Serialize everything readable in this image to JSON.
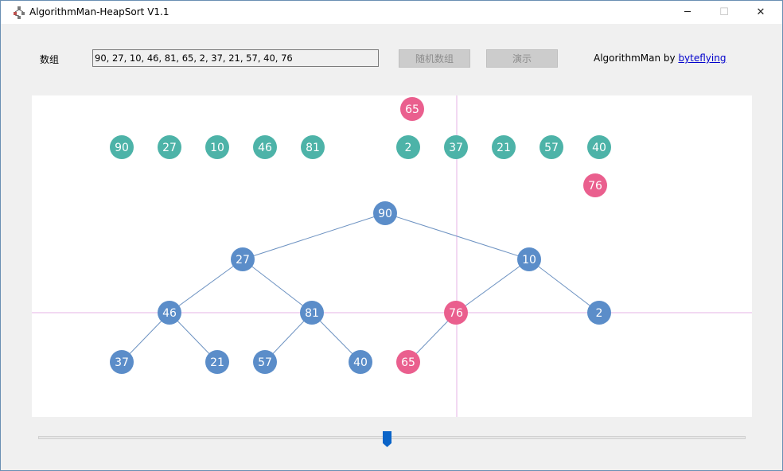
{
  "window": {
    "title": "AlgorithmMan-HeapSort V1.1",
    "icon": "app-tree-icon",
    "minimize_glyph": "─",
    "maximize_glyph": "☐",
    "close_glyph": "✕"
  },
  "toolbar": {
    "array_label": "数组",
    "array_value": "90, 27, 10, 46, 81, 65, 2, 37, 21, 57, 40, 76",
    "random_button": "随机数组",
    "demo_button": "演示",
    "credit_prefix": "AlgorithmMan by ",
    "credit_link": "byteflying"
  },
  "colors": {
    "array_node": "#4db3a8",
    "tree_node": "#5b8dc9",
    "highlight_node": "#ea5f8e",
    "edge": "#6e93c2",
    "crosshair": "#e6b3e6",
    "slider_thumb": "#0a64c8"
  },
  "visualization": {
    "array_row": [
      "90",
      "27",
      "10",
      "46",
      "81",
      "2",
      "37",
      "21",
      "57",
      "40"
    ],
    "floating_nodes": [
      "65",
      "76"
    ],
    "tree": {
      "level0": [
        "90"
      ],
      "level1": [
        "27",
        "10"
      ],
      "level2": [
        "46",
        "81",
        "76",
        "2"
      ],
      "level3": [
        "37",
        "21",
        "57",
        "40",
        "65"
      ],
      "highlighted": [
        "76",
        "65"
      ]
    }
  },
  "slider": {
    "position": 0.49
  }
}
